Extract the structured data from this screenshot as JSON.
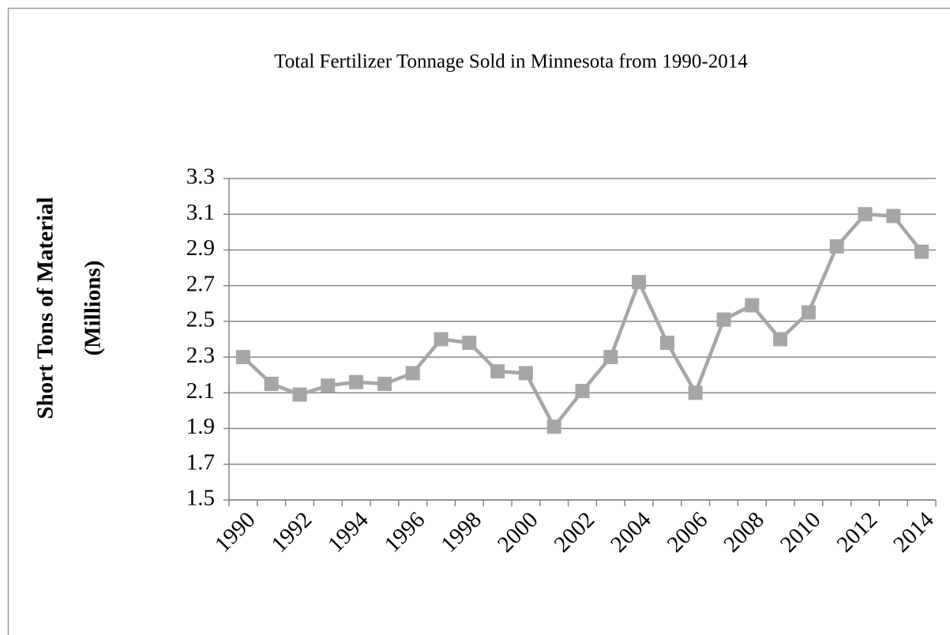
{
  "chart_data": {
    "type": "line",
    "title": "Total Fertilizer  Tonnage  Sold in Minnesota  from  1990-2014",
    "ylabel_lines": [
      "Short Tons of Material",
      "(Millions)"
    ],
    "categories": [
      "1990",
      null,
      "1992",
      null,
      "1994",
      null,
      "1996",
      null,
      "1998",
      null,
      "2000",
      null,
      "2002",
      null,
      "2004",
      null,
      "2006",
      null,
      "2008",
      null,
      "2010",
      null,
      "2012",
      null,
      "2014"
    ],
    "values": [
      2.3,
      2.15,
      2.09,
      2.14,
      2.16,
      2.15,
      2.21,
      2.4,
      2.38,
      2.22,
      2.21,
      1.91,
      2.11,
      2.3,
      2.72,
      2.38,
      2.1,
      2.51,
      2.59,
      2.4,
      2.55,
      2.92,
      3.1,
      3.09,
      2.89
    ],
    "color": "#a6a6a6",
    "ylim": [
      1.5,
      3.3
    ],
    "yticks": [
      1.5,
      1.7,
      1.9,
      2.1,
      2.3,
      2.5,
      2.7,
      2.9,
      3.1,
      3.3
    ],
    "grid": true
  }
}
